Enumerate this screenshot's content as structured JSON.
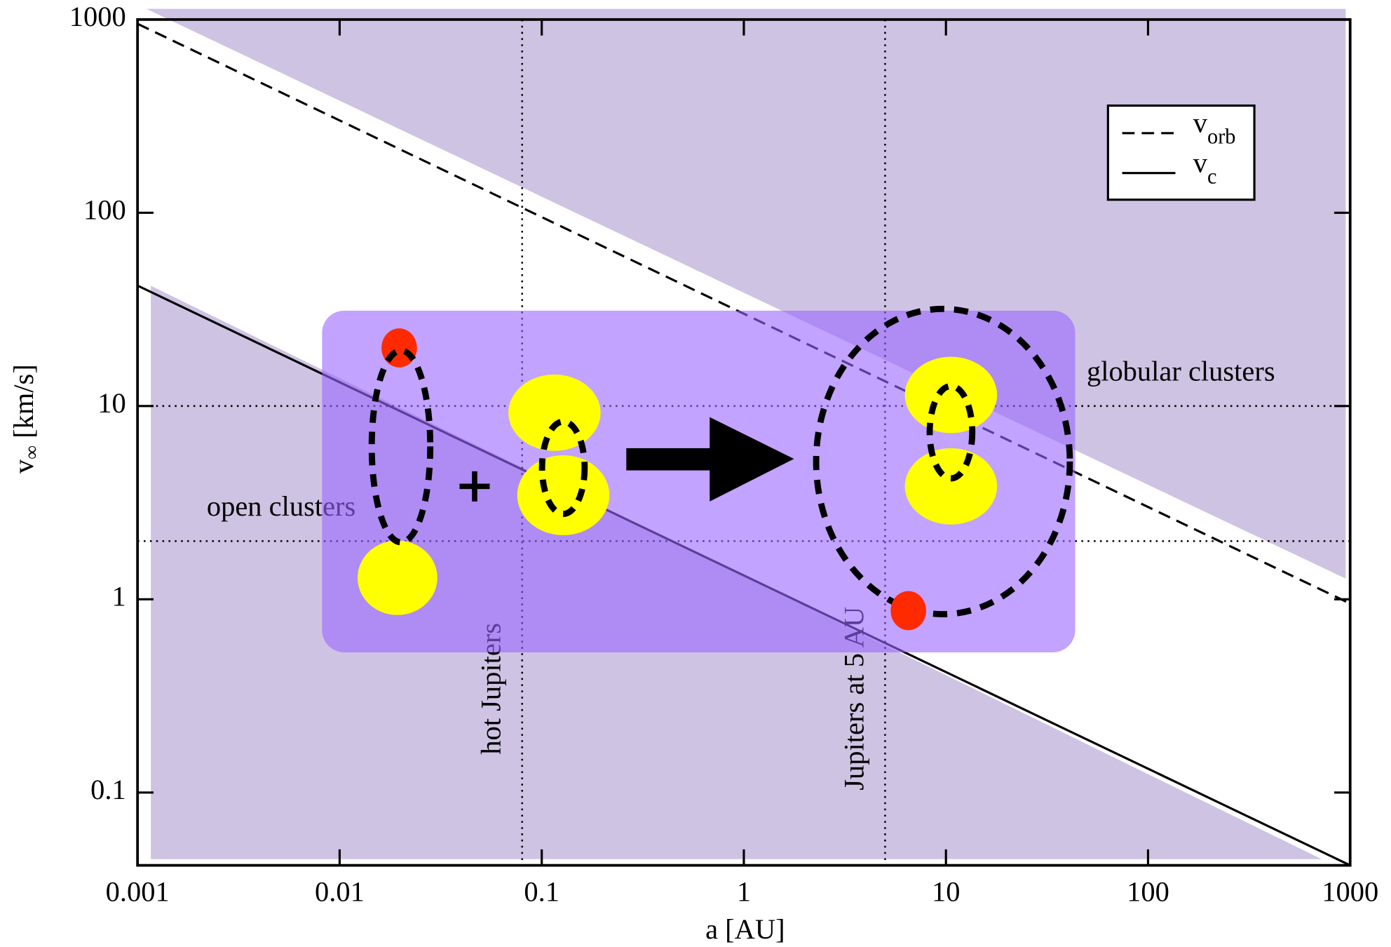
{
  "chart_data": {
    "type": "line",
    "x_label": "a [AU]",
    "y_label": {
      "symbol": "v",
      "subscript": "∞",
      "unit": "[km/s]"
    },
    "log_x": true,
    "log_y": true,
    "xlim": [
      0.001,
      1000
    ],
    "ylim": [
      0.042,
      1000
    ],
    "xticks": [
      0.001,
      0.01,
      0.1,
      1,
      10,
      100,
      1000
    ],
    "yticks": [
      0.1,
      1,
      10,
      100,
      1000
    ],
    "x": [
      0.001,
      1000
    ],
    "series": [
      {
        "name": "v",
        "subscript": "orb",
        "style": "dashed",
        "color": "#000000",
        "values": [
          950,
          0.95
        ]
      },
      {
        "name": "v",
        "subscript": "c",
        "style": "solid",
        "color": "#000000",
        "values": [
          42,
          0.042
        ]
      }
    ],
    "legend": "upper right",
    "reference_x": [
      {
        "value": 0.08,
        "label": "hot Jupiters"
      },
      {
        "value": 5,
        "label": "Jupiters at 5 AU"
      }
    ],
    "reference_y": [
      {
        "value": 10,
        "label": "globular clusters"
      },
      {
        "value": 2,
        "label": "open clusters"
      }
    ]
  }
}
